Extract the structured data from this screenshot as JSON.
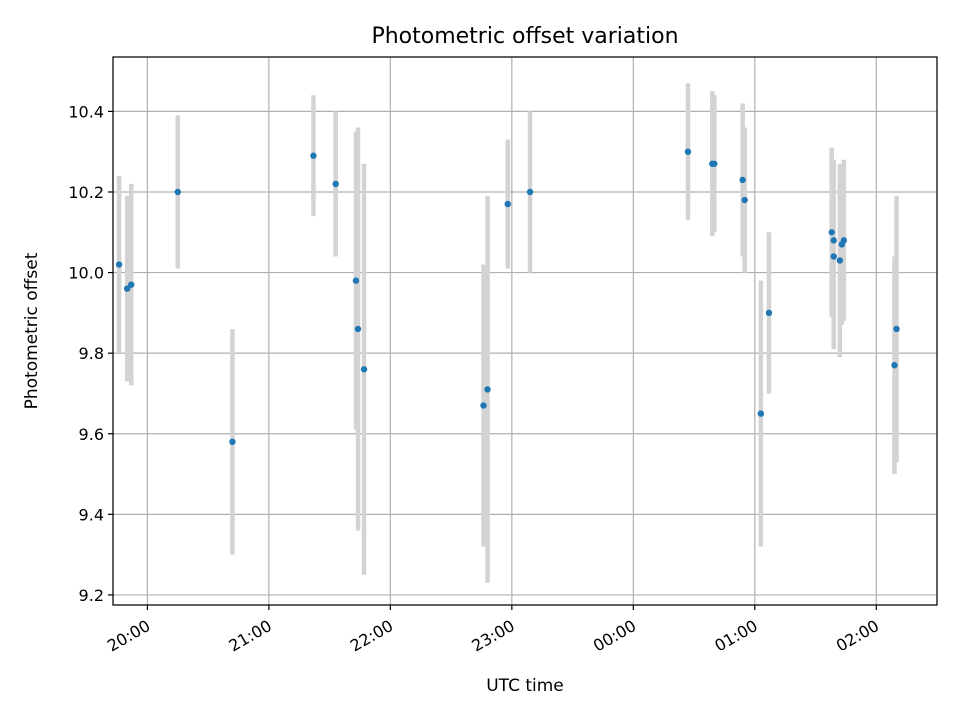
{
  "chart_data": {
    "type": "scatter",
    "title": "Photometric offset variation",
    "xlabel": "UTC time",
    "ylabel": "Photometric offset",
    "xlim": [
      "19:43",
      "02:30"
    ],
    "ylim": [
      9.175,
      10.535
    ],
    "x_ticks": [
      "20:00",
      "21:00",
      "22:00",
      "23:00",
      "00:00",
      "01:00",
      "02:00"
    ],
    "y_ticks": [
      "9.2",
      "9.4",
      "9.6",
      "9.8",
      "10.0",
      "10.2",
      "10.4"
    ],
    "grid": true,
    "colors": {
      "marker": "#1f77b4",
      "errorbar": "#d3d3d3",
      "grid": "#b0b0b0"
    },
    "points": [
      {
        "x": "19:46",
        "y": 10.02,
        "err": 0.22
      },
      {
        "x": "19:50",
        "y": 9.96,
        "err": 0.23
      },
      {
        "x": "19:52",
        "y": 9.97,
        "err": 0.25
      },
      {
        "x": "20:15",
        "y": 10.2,
        "err": 0.19
      },
      {
        "x": "20:42",
        "y": 9.58,
        "err": 0.28
      },
      {
        "x": "21:22",
        "y": 10.29,
        "err": 0.15
      },
      {
        "x": "21:33",
        "y": 10.22,
        "err": 0.18
      },
      {
        "x": "21:43",
        "y": 9.98,
        "err": 0.37
      },
      {
        "x": "21:44",
        "y": 9.86,
        "err": 0.5
      },
      {
        "x": "21:47",
        "y": 9.76,
        "err": 0.51
      },
      {
        "x": "22:46",
        "y": 9.67,
        "err": 0.35
      },
      {
        "x": "22:48",
        "y": 9.71,
        "err": 0.48
      },
      {
        "x": "22:58",
        "y": 10.17,
        "err": 0.16
      },
      {
        "x": "23:09",
        "y": 10.2,
        "err": 0.2
      },
      {
        "x": "00:27",
        "y": 10.3,
        "err": 0.17
      },
      {
        "x": "00:39",
        "y": 10.27,
        "err": 0.18
      },
      {
        "x": "00:40",
        "y": 10.27,
        "err": 0.17
      },
      {
        "x": "00:54",
        "y": 10.23,
        "err": 0.19
      },
      {
        "x": "00:55",
        "y": 10.18,
        "err": 0.18
      },
      {
        "x": "01:03",
        "y": 9.65,
        "err": 0.33
      },
      {
        "x": "01:07",
        "y": 9.9,
        "err": 0.2
      },
      {
        "x": "01:38",
        "y": 10.1,
        "err": 0.21
      },
      {
        "x": "01:39",
        "y": 10.08,
        "err": 0.2
      },
      {
        "x": "01:39",
        "y": 10.04,
        "err": 0.23
      },
      {
        "x": "01:42",
        "y": 10.03,
        "err": 0.24
      },
      {
        "x": "01:43",
        "y": 10.07,
        "err": 0.2
      },
      {
        "x": "01:44",
        "y": 10.08,
        "err": 0.2
      },
      {
        "x": "02:09",
        "y": 9.77,
        "err": 0.27
      },
      {
        "x": "02:10",
        "y": 9.86,
        "err": 0.33
      }
    ]
  }
}
